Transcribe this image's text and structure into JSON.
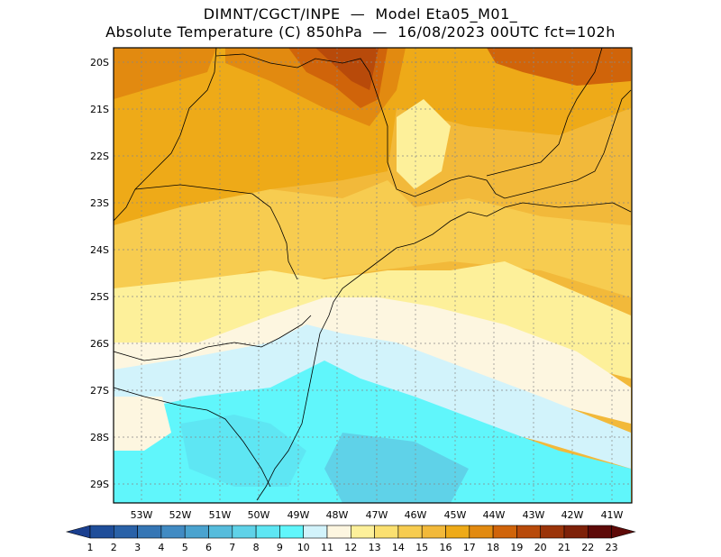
{
  "header": {
    "title_line1": "DIMNT/CGCT/INPE  —  Model Eta05_M01_",
    "title_line2": "Absolute Temperature (C) 850hPa  —  16/08/2023 00UTC fct=102h"
  },
  "map": {
    "lat_labels": [
      "20S",
      "21S",
      "22S",
      "23S",
      "24S",
      "25S",
      "26S",
      "27S",
      "28S",
      "29S"
    ],
    "lon_labels": [
      "53W",
      "52W",
      "51W",
      "50W",
      "49W",
      "48W",
      "47W",
      "46W",
      "45W",
      "44W",
      "43W",
      "42W",
      "41W"
    ]
  },
  "colorbar": {
    "labels": [
      "1",
      "2",
      "3",
      "4",
      "5",
      "6",
      "7",
      "8",
      "9",
      "10",
      "11",
      "12",
      "13",
      "14",
      "15",
      "16",
      "17",
      "18",
      "19",
      "20",
      "21",
      "22",
      "23"
    ],
    "colors": [
      "#1a3f8f",
      "#1f4e9a",
      "#2a62a8",
      "#3576b5",
      "#418bc3",
      "#4aa3cf",
      "#56bcdc",
      "#5fd2e8",
      "#5ee6f3",
      "#60f6fb",
      "#d2f3fb",
      "#fdf6e0",
      "#fdf09a",
      "#fbe070",
      "#f7cc50",
      "#f2b93a",
      "#eeaa18",
      "#e28a10",
      "#d0640a",
      "#b84a0a",
      "#9b3409",
      "#7e2108",
      "#5e0a08"
    ]
  }
}
